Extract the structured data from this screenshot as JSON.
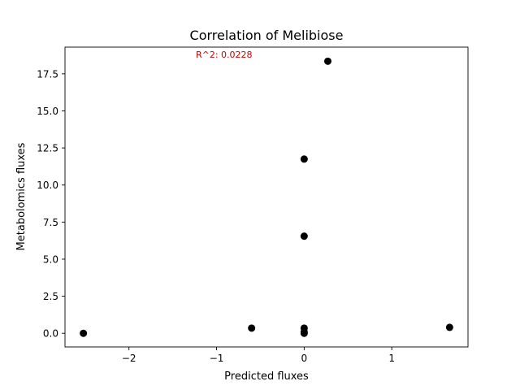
{
  "chart_data": {
    "type": "scatter",
    "title": "Correlation of Melibiose",
    "xlabel": "Predicted fluxes",
    "ylabel": "Metabolomics fluxes",
    "annotation": "R^2: 0.0228",
    "annotation_color": "#cc0000",
    "marker_color": "#000000",
    "xlim": [
      -2.73,
      1.87
    ],
    "ylim": [
      -0.92,
      19.3
    ],
    "grid": false,
    "x_ticks": [
      {
        "value": -2,
        "label": "−2"
      },
      {
        "value": -1,
        "label": "−1"
      },
      {
        "value": 0,
        "label": "0"
      },
      {
        "value": 1,
        "label": "1"
      }
    ],
    "y_ticks": [
      {
        "value": 0,
        "label": "0.0"
      },
      {
        "value": 2.5,
        "label": "2.5"
      },
      {
        "value": 5,
        "label": "5.0"
      },
      {
        "value": 7.5,
        "label": "7.5"
      },
      {
        "value": 10,
        "label": "10.0"
      },
      {
        "value": 12.5,
        "label": "12.5"
      },
      {
        "value": 15,
        "label": "15.0"
      },
      {
        "value": 17.5,
        "label": "17.5"
      }
    ],
    "points": [
      {
        "x": -2.52,
        "y": 0.0
      },
      {
        "x": -0.6,
        "y": 0.35
      },
      {
        "x": 0.0,
        "y": 0.0
      },
      {
        "x": 0.0,
        "y": 0.1
      },
      {
        "x": 0.0,
        "y": 0.35
      },
      {
        "x": 0.0,
        "y": 6.55
      },
      {
        "x": 0.0,
        "y": 11.75
      },
      {
        "x": 0.27,
        "y": 18.35
      },
      {
        "x": 1.66,
        "y": 0.4
      }
    ]
  }
}
